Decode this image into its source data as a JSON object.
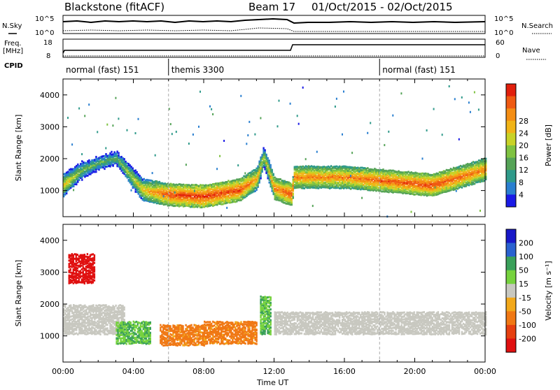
{
  "header": {
    "station": "Blackstone (fitACF)",
    "beam": "Beam 17",
    "date_range": "01/Oct/2015 - 02/Oct/2015"
  },
  "left_labels": {
    "nsky": "N.Sky",
    "freq": "Freq.",
    "freq_unit": "[MHz]",
    "cpid": "CPID"
  },
  "right_labels": {
    "nsearch": "N.Search",
    "nave": "Nave"
  },
  "small_axes": {
    "noise_left": [
      "10^5",
      "10^0"
    ],
    "noise_right": [
      "10^5",
      "10^0"
    ],
    "freq_left": [
      "18",
      "8"
    ],
    "nave_right": [
      "60",
      "0"
    ]
  },
  "cpid_segments": [
    {
      "label": "normal (fast) 151",
      "start_h": 0,
      "end_h": 6
    },
    {
      "label": "themis 3300",
      "start_h": 6,
      "end_h": 18
    },
    {
      "label": "normal (fast) 151",
      "start_h": 18,
      "end_h": 24
    }
  ],
  "x_axis": {
    "label": "Time UT",
    "ticks": [
      "00:00",
      "04:00",
      "08:00",
      "12:00",
      "16:00",
      "20:00",
      "00:00"
    ],
    "range_hours": [
      0,
      24
    ]
  },
  "chart_data": [
    {
      "type": "heatmap",
      "panel": "power",
      "ylabel": "Slant Range [km]",
      "yticks": [
        1000,
        2000,
        3000,
        4000
      ],
      "ylim": [
        180,
        4500
      ],
      "xlim_hours": [
        0,
        24
      ],
      "colorbar": {
        "label": "Power [dB]",
        "ticks": [
          "4",
          "8",
          "12",
          "16",
          "20",
          "24",
          "28"
        ],
        "colors": [
          "#1a1ae6",
          "#2a7fd0",
          "#2f9a8a",
          "#55a357",
          "#7fc241",
          "#c8d227",
          "#f1b417",
          "#f48e14",
          "#ef5a12",
          "#e11f0c"
        ]
      },
      "band_trace": [
        {
          "t": 0.0,
          "range": 1200,
          "power": 20
        },
        {
          "t": 1.0,
          "range": 1650,
          "power": 14
        },
        {
          "t": 2.0,
          "range": 1900,
          "power": 12
        },
        {
          "t": 3.0,
          "range": 2050,
          "power": 12
        },
        {
          "t": 4.5,
          "range": 1050,
          "power": 20
        },
        {
          "t": 6.0,
          "range": 900,
          "power": 27
        },
        {
          "t": 8.0,
          "range": 850,
          "power": 28
        },
        {
          "t": 10.0,
          "range": 1050,
          "power": 27
        },
        {
          "t": 11.0,
          "range": 1400,
          "power": 22
        },
        {
          "t": 11.4,
          "range": 2100,
          "power": 16
        },
        {
          "t": 12.0,
          "range": 1100,
          "power": 24
        },
        {
          "t": 13.0,
          "range": 900,
          "power": 27
        },
        {
          "t": 13.1,
          "range": 1450,
          "power": 24
        },
        {
          "t": 16.0,
          "range": 1450,
          "power": 24
        },
        {
          "t": 18.0,
          "range": 1350,
          "power": 26
        },
        {
          "t": 21.0,
          "range": 1200,
          "power": 27
        },
        {
          "t": 24.0,
          "range": 1700,
          "power": 24
        }
      ]
    },
    {
      "type": "heatmap",
      "panel": "velocity",
      "ylabel": "Slant Range [km]",
      "yticks": [
        1000,
        2000,
        3000,
        4000
      ],
      "ylim": [
        180,
        4500
      ],
      "xlim_hours": [
        0,
        24
      ],
      "colorbar": {
        "label": "Velocity [m s⁻¹]",
        "ticks": [
          "200",
          "100",
          "50",
          "15",
          "-15",
          "-50",
          "-100",
          "-200"
        ],
        "colors": [
          "#1818c8",
          "#2a62d0",
          "#3aa05a",
          "#76d23e",
          "#c8c8c0",
          "#f2a81a",
          "#f07814",
          "#e64010",
          "#e01010"
        ]
      },
      "regions": [
        {
          "t_start": 0.0,
          "t_end": 3.5,
          "range_low": 1100,
          "range_high": 2000,
          "velocity": 0
        },
        {
          "t_start": 0.3,
          "t_end": 1.8,
          "range_low": 2700,
          "range_high": 3600,
          "velocity": -200
        },
        {
          "t_start": 3.0,
          "t_end": 5.0,
          "range_low": 800,
          "range_high": 1500,
          "velocity": 30
        },
        {
          "t_start": 5.5,
          "t_end": 8.0,
          "range_low": 750,
          "range_high": 1400,
          "velocity": -40
        },
        {
          "t_start": 8.0,
          "t_end": 11.0,
          "range_low": 800,
          "range_high": 1500,
          "velocity": -40
        },
        {
          "t_start": 11.2,
          "t_end": 11.8,
          "range_low": 1100,
          "range_high": 2300,
          "velocity": 30
        },
        {
          "t_start": 12.0,
          "t_end": 24.0,
          "range_low": 1100,
          "range_high": 1800,
          "velocity": 0
        }
      ]
    }
  ]
}
